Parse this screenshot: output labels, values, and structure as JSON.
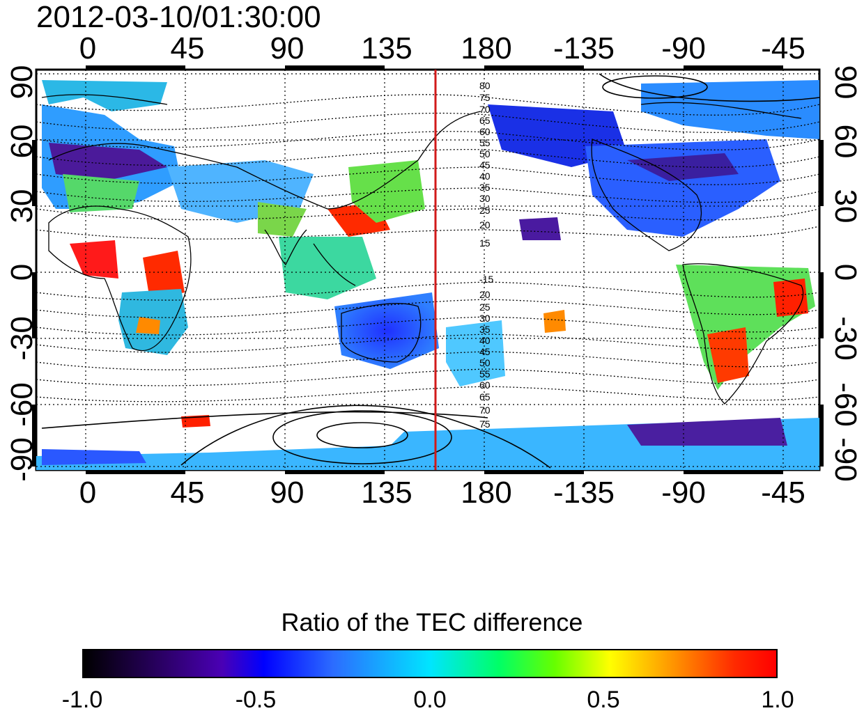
{
  "title": "2012-03-10/01:30:00",
  "axes": {
    "lon_ticks": [
      "0",
      "45",
      "90",
      "135",
      "180",
      "-135",
      "-90",
      "-45"
    ],
    "lat_ticks": [
      "90",
      "60",
      "30",
      "0",
      "-30",
      "-60",
      "-90"
    ],
    "lon_range": [
      -20,
      340
    ],
    "lat_range": [
      -90,
      90
    ]
  },
  "map": {
    "grid": "dotted",
    "marker_line": {
      "longitude": 161,
      "color": "#d11a1a"
    },
    "contour_labels_north": [
      "80",
      "75",
      "70",
      "65",
      "60",
      "55",
      "50",
      "45",
      "40",
      "35",
      "30",
      "25",
      "20",
      "15"
    ],
    "contour_labels_south": [
      "-15",
      "20",
      "25",
      "30",
      "35",
      "40",
      "45",
      "50",
      "55",
      "60",
      "65",
      "70",
      "75"
    ]
  },
  "colorbar": {
    "title": "Ratio of the TEC difference",
    "ticks": [
      "-1.0",
      "-0.5",
      "0.0",
      "0.5",
      "1.0"
    ],
    "range": [
      -1.0,
      1.0
    ]
  }
}
